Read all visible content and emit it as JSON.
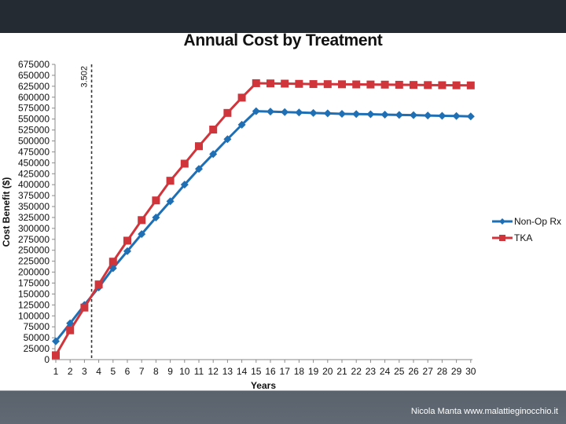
{
  "slide": {
    "credit": "Nicola Manta www.malattieginocchio.it",
    "top_band_color": "#252b33",
    "bottom_band_color": "#5a626c"
  },
  "chart_data": {
    "type": "line",
    "title": "Annual Cost by Treatment",
    "xlabel": "Years",
    "ylabel": "Cost Benefit ($)",
    "x": [
      1,
      2,
      3,
      4,
      5,
      6,
      7,
      8,
      9,
      10,
      11,
      12,
      13,
      14,
      15,
      16,
      17,
      18,
      19,
      20,
      21,
      22,
      23,
      24,
      25,
      26,
      27,
      28,
      29,
      30
    ],
    "x_tick_labels": [
      "1",
      "2",
      "3",
      "4",
      "5",
      "6",
      "7",
      "8",
      "9",
      "10",
      "11",
      "12",
      "13",
      "14",
      "15",
      "16",
      "17",
      "18",
      "19",
      "20",
      "21",
      "22",
      "23",
      "24",
      "25",
      "26",
      "27",
      "28",
      "29",
      "30"
    ],
    "ylim": [
      0,
      675000
    ],
    "y_ticks": [
      0,
      25000,
      50000,
      75000,
      100000,
      125000,
      150000,
      175000,
      200000,
      225000,
      250000,
      275000,
      300000,
      325000,
      350000,
      375000,
      400000,
      425000,
      450000,
      475000,
      500000,
      525000,
      550000,
      575000,
      600000,
      625000,
      650000,
      675000
    ],
    "y_tick_labels": [
      "0",
      "25000",
      "50000",
      "75000",
      "100000",
      "125000",
      "150000",
      "175000",
      "200000",
      "225000",
      "250000",
      "275000",
      "300000",
      "325000",
      "350000",
      "375000",
      "400000",
      "425000",
      "450000",
      "475000",
      "500000",
      "525000",
      "550000",
      "575000",
      "600000",
      "625000",
      "650000",
      "675000"
    ],
    "grid": false,
    "legend_position": "right",
    "series": [
      {
        "name": "Non-Op Rx",
        "color": "#1f6fb5",
        "marker": "diamond",
        "values": [
          42000,
          83000,
          125000,
          165000,
          209000,
          248000,
          287000,
          325000,
          362000,
          400000,
          436000,
          470000,
          504000,
          537000,
          568000,
          567000,
          566000,
          565000,
          564000,
          563000,
          562000,
          561500,
          561000,
          560000,
          559500,
          559000,
          558000,
          557500,
          557000,
          556000
        ]
      },
      {
        "name": "TKA",
        "color": "#d0353c",
        "marker": "square",
        "values": [
          10000,
          67000,
          119000,
          172000,
          224000,
          272000,
          319000,
          364000,
          409000,
          448000,
          488000,
          526000,
          564000,
          599000,
          632000,
          631500,
          631000,
          630500,
          630000,
          629800,
          629500,
          629200,
          629000,
          628700,
          628400,
          628000,
          627700,
          627400,
          627200,
          627000
        ]
      }
    ],
    "annotations": [
      {
        "type": "vertical-dashed-line",
        "x": 3.502,
        "label": "3.502"
      }
    ]
  }
}
